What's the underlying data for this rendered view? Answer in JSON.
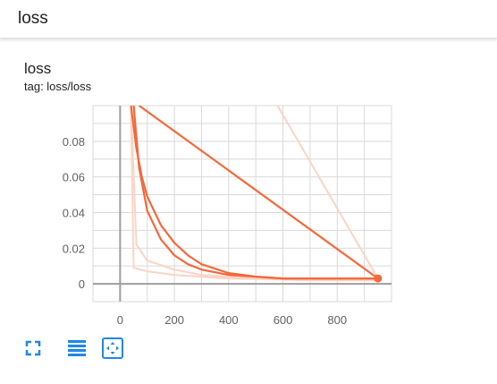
{
  "header": {
    "title": "loss"
  },
  "card": {
    "title": "loss",
    "tag": "tag: loss/loss"
  },
  "toolbar": [
    {
      "icon": "fullscreen-icon"
    },
    {
      "icon": "data-table-icon"
    },
    {
      "icon": "fit-domain-icon"
    }
  ],
  "colors": {
    "series": "#f4683a",
    "series_faded": "#fbd4c6",
    "grid": "#d9d9d9",
    "axis": "#9e9e9e",
    "icon": "#1e88e5"
  },
  "chart_data": {
    "type": "line",
    "title": "",
    "xlabel": "",
    "ylabel": "",
    "xlim": [
      -100,
      1000
    ],
    "ylim": [
      -0.01,
      0.1
    ],
    "x_ticks": [
      "0",
      "200",
      "400",
      "600",
      "800"
    ],
    "x_tick_values": [
      0,
      200,
      400,
      600,
      800
    ],
    "y_ticks": [
      "0",
      "0.02",
      "0.04",
      "0.06",
      "0.08"
    ],
    "y_tick_values": [
      0,
      0.02,
      0.04,
      0.06,
      0.08
    ],
    "grid": true,
    "series": [
      {
        "style": "faded",
        "x": [
          950,
          580
        ],
        "y": [
          0.003,
          0.1
        ]
      },
      {
        "style": "faded",
        "x": [
          40,
          50,
          100,
          200,
          400,
          700,
          950
        ],
        "y": [
          0.1,
          0.009,
          0.007,
          0.005,
          0.003,
          0.002,
          0.002
        ]
      },
      {
        "style": "faded",
        "x": [
          40,
          60,
          100,
          200,
          300,
          500,
          700,
          950
        ],
        "y": [
          0.1,
          0.022,
          0.013,
          0.008,
          0.005,
          0.003,
          0.002,
          0.002
        ]
      },
      {
        "style": "main",
        "x": [
          70,
          950
        ],
        "y": [
          0.1,
          0.003
        ]
      },
      {
        "style": "main",
        "x": [
          40,
          60,
          80,
          100,
          150,
          200,
          250,
          300,
          400,
          500,
          600,
          700,
          800,
          950
        ],
        "y": [
          0.1,
          0.076,
          0.06,
          0.049,
          0.033,
          0.023,
          0.016,
          0.011,
          0.006,
          0.004,
          0.003,
          0.003,
          0.003,
          0.003
        ]
      },
      {
        "style": "main",
        "x": [
          50,
          70,
          100,
          150,
          200,
          250,
          300,
          400,
          500,
          600,
          800,
          950
        ],
        "y": [
          0.1,
          0.065,
          0.041,
          0.025,
          0.016,
          0.011,
          0.008,
          0.005,
          0.004,
          0.003,
          0.003,
          0.003
        ]
      }
    ],
    "highlight_point": {
      "x": 950,
      "y": 0.003
    }
  }
}
